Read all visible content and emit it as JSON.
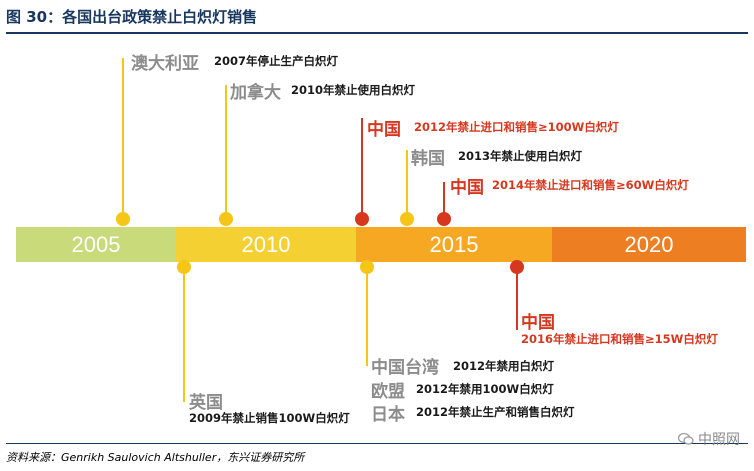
{
  "title": "图 30：各国出台政策禁止白炽灯销售",
  "source": "资料来源：Genrikh Saulovich Altshuller，东兴证券研究所",
  "watermark": "中照网",
  "colors": {
    "title": "#17375e",
    "bar_2005": "#c8da7a",
    "bar_2010": "#f5d032",
    "bar_2015": "#f6a822",
    "bar_2020": "#ee7e22",
    "stem_yellow": "#f5c518",
    "stem_red": "#d6381f",
    "text_red": "#d6381f",
    "text_gray": "#8c8c8c"
  },
  "timeline": {
    "periods": [
      "2005",
      "2010",
      "2015",
      "2020"
    ]
  },
  "events_above": [
    {
      "country": "澳大利亚",
      "text": "2007年停止生产白炽灯",
      "color": "yellow"
    },
    {
      "country": "加拿大",
      "text": "2010年禁止使用白炽灯",
      "color": "yellow"
    },
    {
      "country": "中国",
      "text": "2012年禁止进口和销售≥100W白炽灯",
      "color": "red"
    },
    {
      "country": "韩国",
      "text": "2013年禁止使用白炽灯",
      "color": "yellow"
    },
    {
      "country": "中国",
      "text": "2014年禁止进口和销售≥60W白炽灯",
      "color": "red"
    }
  ],
  "events_below": [
    {
      "country": "英国",
      "text": "2009年禁止销售100W白炽灯",
      "color": "yellow"
    },
    {
      "country": "中国台湾",
      "text": "2012年禁用白炽灯",
      "color": "yellow"
    },
    {
      "country": "欧盟",
      "text": "2012年禁用100W白炽灯",
      "color": "yellow"
    },
    {
      "country": "日本",
      "text": "2012年禁止生产和销售白炽灯",
      "color": "yellow"
    },
    {
      "country": "中国",
      "text": "2016年禁止进口和销售≥15W白炽灯",
      "color": "red"
    }
  ]
}
